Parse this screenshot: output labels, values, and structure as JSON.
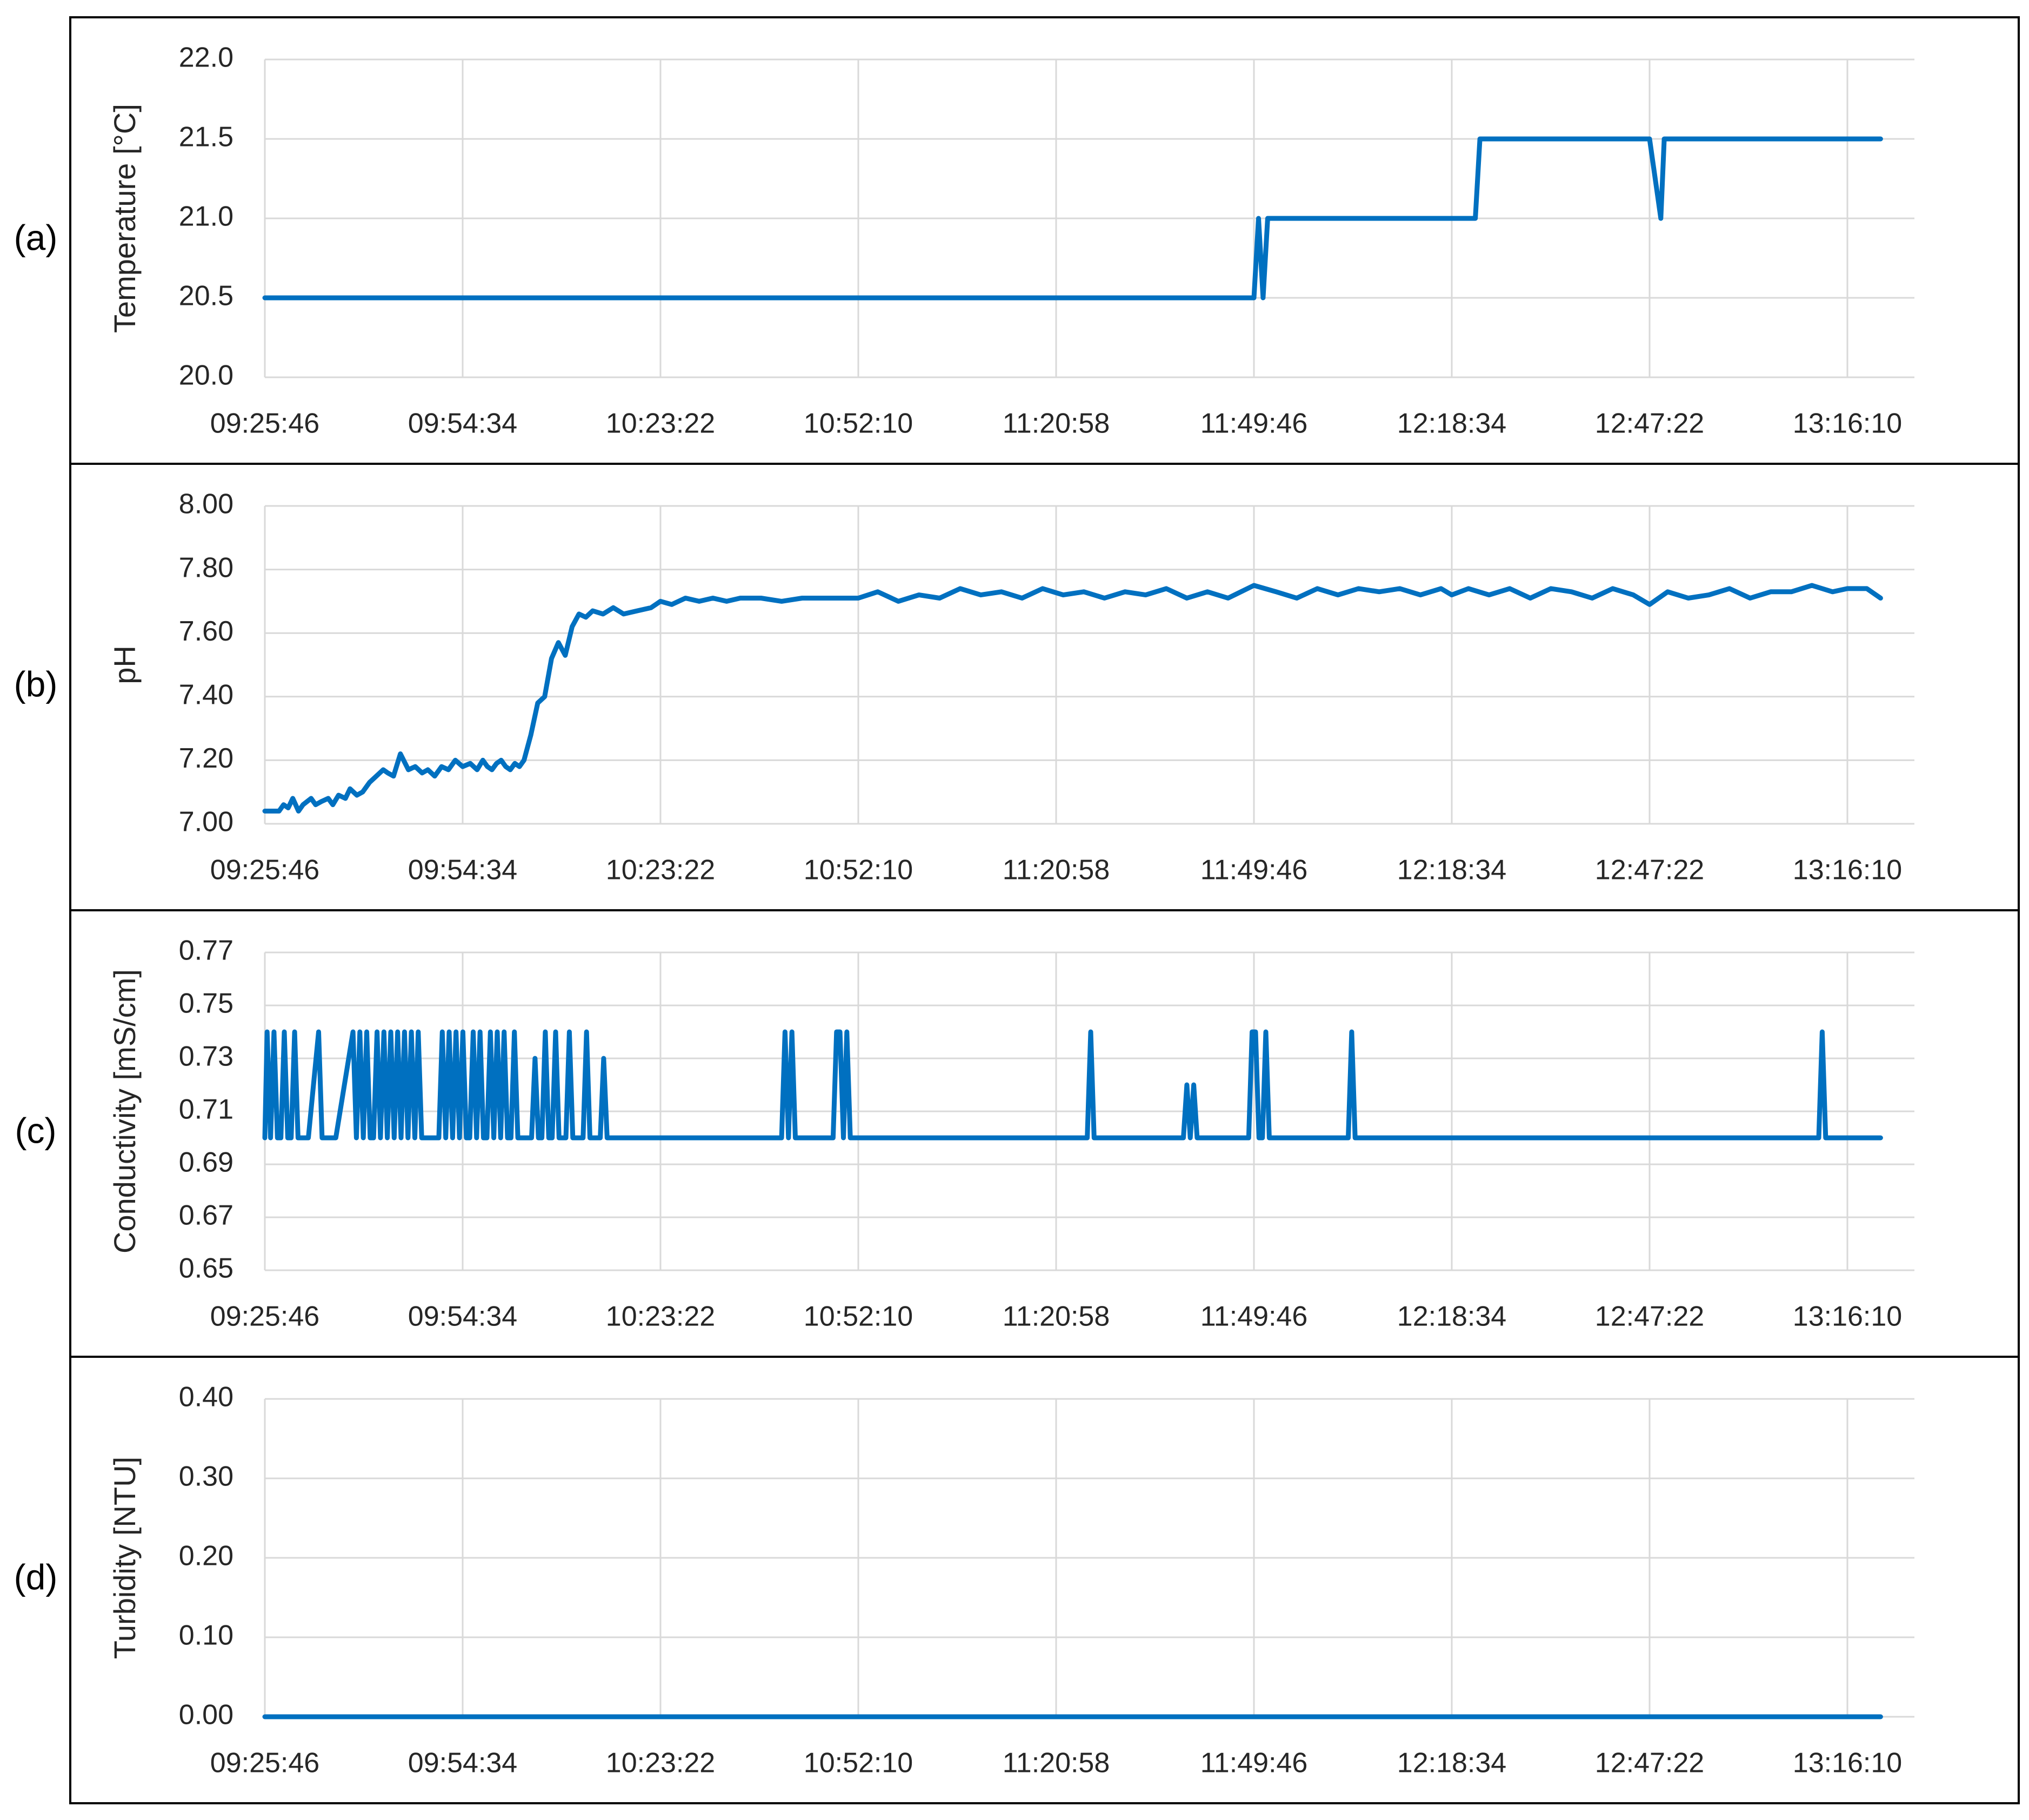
{
  "colors": {
    "series": "#0070C0",
    "grid": "#d9d9d9",
    "frame": "#000000",
    "text": "#262626"
  },
  "chart_data": [
    {
      "panel": "(a)",
      "type": "line",
      "ylabel": "Temperature [°C]",
      "ylim": [
        20.0,
        22.0
      ],
      "yticks": [
        "20.0",
        "20.5",
        "21.0",
        "21.5",
        "22.0"
      ],
      "xticks": [
        "09:25:46",
        "09:54:34",
        "10:23:22",
        "10:52:10",
        "11:20:58",
        "11:49:46",
        "12:18:34",
        "12:47:22",
        "13:16:10"
      ],
      "grid": true,
      "series": [
        {
          "x": [
            "09:25:46",
            "11:49:46",
            "11:50:26",
            "11:51:06",
            "11:51:46",
            "11:52:26",
            "12:22:00",
            "12:22:40",
            "12:47:22",
            "12:49:00",
            "12:49:30",
            "12:50:00",
            "13:21:00"
          ],
          "values": [
            20.5,
            20.5,
            21.0,
            20.5,
            21.0,
            21.0,
            21.0,
            21.5,
            21.5,
            21.0,
            21.5,
            21.5,
            21.5
          ]
        }
      ]
    },
    {
      "panel": "(b)",
      "type": "line",
      "ylabel": "pH",
      "ylim": [
        7.0,
        8.0
      ],
      "yticks": [
        "7.00",
        "7.20",
        "7.40",
        "7.60",
        "7.80",
        "8.00"
      ],
      "xticks": [
        "09:25:46",
        "09:54:34",
        "10:23:22",
        "10:52:10",
        "11:20:58",
        "11:49:46",
        "12:18:34",
        "12:47:22",
        "13:16:10"
      ],
      "grid": true,
      "series": [
        {
          "x": [
            "09:25:46",
            "09:27:50",
            "09:28:30",
            "09:29:10",
            "09:29:50",
            "09:30:40",
            "09:31:20",
            "09:32:30",
            "09:33:10",
            "09:34:00",
            "09:35:00",
            "09:35:40",
            "09:36:30",
            "09:37:30",
            "09:38:10",
            "09:39:10",
            "09:40:00",
            "09:41:00",
            "09:42:00",
            "09:43:00",
            "09:43:40",
            "09:44:30",
            "09:45:30",
            "09:46:40",
            "09:47:40",
            "09:48:40",
            "09:49:30",
            "09:50:30",
            "09:51:30",
            "09:52:30",
            "09:53:30",
            "09:54:34",
            "09:55:40",
            "09:56:40",
            "09:57:30",
            "09:58:10",
            "09:58:50",
            "09:59:30",
            "10:00:10",
            "10:00:50",
            "10:01:30",
            "10:02:10",
            "10:02:50",
            "10:03:30",
            "10:04:30",
            "10:05:30",
            "10:06:30",
            "10:07:30",
            "10:08:30",
            "10:09:30",
            "10:10:30",
            "10:11:30",
            "10:12:30",
            "10:13:30",
            "10:15:00",
            "10:16:30",
            "10:18:00",
            "10:20:00",
            "10:22:00",
            "10:23:22",
            "10:25:00",
            "10:27:00",
            "10:29:00",
            "10:31:00",
            "10:33:00",
            "10:35:00",
            "10:38:00",
            "10:41:00",
            "10:44:00",
            "10:47:00",
            "10:50:00",
            "10:52:10",
            "10:55:00",
            "10:58:00",
            "11:01:00",
            "11:04:00",
            "11:07:00",
            "11:10:00",
            "11:13:00",
            "11:16:00",
            "11:19:00",
            "11:22:00",
            "11:25:00",
            "11:28:00",
            "11:31:00",
            "11:34:00",
            "11:37:00",
            "11:40:00",
            "11:43:00",
            "11:46:00",
            "11:49:46",
            "11:53:00",
            "11:56:00",
            "11:59:00",
            "12:02:00",
            "12:05:00",
            "12:08:00",
            "12:11:00",
            "12:14:00",
            "12:17:00",
            "12:18:34",
            "12:21:00",
            "12:24:00",
            "12:27:00",
            "12:30:00",
            "12:33:00",
            "12:36:00",
            "12:39:00",
            "12:42:00",
            "12:45:00",
            "12:47:22",
            "12:50:00",
            "12:53:00",
            "12:56:00",
            "12:59:00",
            "13:02:00",
            "13:05:00",
            "13:08:00",
            "13:11:00",
            "13:14:00",
            "13:16:10",
            "13:19:00",
            "13:21:00"
          ],
          "values": [
            7.04,
            7.04,
            7.06,
            7.05,
            7.08,
            7.04,
            7.06,
            7.08,
            7.06,
            7.07,
            7.08,
            7.06,
            7.09,
            7.08,
            7.11,
            7.09,
            7.1,
            7.13,
            7.15,
            7.17,
            7.16,
            7.15,
            7.22,
            7.17,
            7.18,
            7.16,
            7.17,
            7.15,
            7.18,
            7.17,
            7.2,
            7.18,
            7.19,
            7.17,
            7.2,
            7.18,
            7.17,
            7.19,
            7.2,
            7.18,
            7.17,
            7.19,
            7.18,
            7.2,
            7.28,
            7.38,
            7.4,
            7.52,
            7.57,
            7.53,
            7.62,
            7.66,
            7.65,
            7.67,
            7.66,
            7.68,
            7.66,
            7.67,
            7.68,
            7.7,
            7.69,
            7.71,
            7.7,
            7.71,
            7.7,
            7.71,
            7.71,
            7.7,
            7.71,
            7.71,
            7.71,
            7.71,
            7.73,
            7.7,
            7.72,
            7.71,
            7.74,
            7.72,
            7.73,
            7.71,
            7.74,
            7.72,
            7.73,
            7.71,
            7.73,
            7.72,
            7.74,
            7.71,
            7.73,
            7.71,
            7.75,
            7.73,
            7.71,
            7.74,
            7.72,
            7.74,
            7.73,
            7.74,
            7.72,
            7.74,
            7.72,
            7.74,
            7.72,
            7.74,
            7.71,
            7.74,
            7.73,
            7.71,
            7.74,
            7.72,
            7.69,
            7.73,
            7.71,
            7.72,
            7.74,
            7.71,
            7.73,
            7.73,
            7.75,
            7.73,
            7.74,
            7.74,
            7.71
          ]
        }
      ]
    },
    {
      "panel": "(c)",
      "type": "line",
      "ylabel": "Conductivity [mS/cm]",
      "ylim": [
        0.65,
        0.77
      ],
      "yticks": [
        "0.65",
        "0.67",
        "0.69",
        "0.71",
        "0.73",
        "0.75",
        "0.77"
      ],
      "xticks": [
        "09:25:46",
        "09:54:34",
        "10:23:22",
        "10:52:10",
        "11:20:58",
        "11:49:46",
        "12:18:34",
        "12:47:22",
        "13:16:10"
      ],
      "grid": true,
      "series": [
        {
          "x": [
            "09:25:46",
            "09:26:06",
            "09:26:36",
            "09:27:06",
            "09:27:36",
            "09:28:06",
            "09:28:36",
            "09:29:06",
            "09:29:36",
            "09:30:06",
            "09:30:36",
            "09:31:06",
            "09:31:36",
            "09:32:06",
            "09:33:36",
            "09:34:06",
            "09:34:36",
            "09:35:06",
            "09:35:36",
            "09:36:06",
            "09:38:36",
            "09:39:06",
            "09:39:36",
            "09:40:06",
            "09:40:36",
            "09:41:06",
            "09:41:36",
            "09:42:06",
            "09:42:36",
            "09:43:06",
            "09:43:36",
            "09:44:06",
            "09:44:36",
            "09:45:06",
            "09:45:36",
            "09:46:06",
            "09:46:36",
            "09:47:06",
            "09:47:36",
            "09:48:06",
            "09:48:36",
            "09:49:06",
            "09:49:36",
            "09:50:06",
            "09:50:36",
            "09:51:06",
            "09:51:36",
            "09:52:06",
            "09:52:36",
            "09:53:06",
            "09:53:36",
            "09:54:06",
            "09:54:36",
            "09:55:06",
            "09:55:36",
            "09:56:06",
            "09:56:36",
            "09:57:06",
            "09:57:36",
            "09:58:06",
            "09:58:36",
            "09:59:06",
            "09:59:36",
            "10:00:06",
            "10:00:36",
            "10:01:06",
            "10:01:36",
            "10:02:06",
            "10:02:36",
            "10:03:06",
            "10:03:36",
            "10:04:06",
            "10:04:36",
            "10:05:06",
            "10:05:36",
            "10:06:06",
            "10:06:36",
            "10:07:06",
            "10:07:36",
            "10:08:06",
            "10:08:36",
            "10:09:06",
            "10:09:36",
            "10:10:06",
            "10:10:36",
            "10:11:06",
            "10:11:36",
            "10:12:06",
            "10:12:36",
            "10:13:06",
            "10:13:36",
            "10:14:06",
            "10:14:36",
            "10:15:06",
            "10:15:36",
            "10:16:06",
            "10:16:36",
            "10:17:06",
            "10:17:36",
            "10:18:06",
            "10:18:36",
            "10:19:06",
            "10:19:36",
            "10:20:06",
            "10:20:36",
            "10:21:06",
            "10:21:36",
            "10:22:06",
            "10:22:36",
            "10:23:06",
            "10:41:00",
            "10:41:30",
            "10:42:00",
            "10:42:30",
            "10:43:00",
            "10:43:30",
            "10:44:00",
            "10:48:30",
            "10:49:00",
            "10:49:30",
            "10:50:00",
            "10:50:30",
            "10:51:00",
            "10:51:30",
            "10:52:00",
            "11:25:30",
            "11:26:00",
            "11:26:30",
            "11:27:00",
            "11:39:30",
            "11:40:00",
            "11:40:30",
            "11:41:00",
            "11:41:30",
            "11:49:00",
            "11:49:30",
            "11:50:00",
            "11:50:30",
            "11:51:00",
            "11:51:30",
            "11:52:00",
            "11:52:30",
            "11:53:00",
            "11:53:30",
            "11:54:00",
            "12:03:30",
            "12:04:00",
            "12:04:30",
            "12:05:00",
            "12:05:30",
            "13:12:00",
            "13:12:30",
            "13:13:00",
            "13:13:30",
            "13:21:00"
          ],
          "values": [
            0.7,
            0.74,
            0.7,
            0.74,
            0.7,
            0.7,
            0.74,
            0.7,
            0.7,
            0.74,
            0.7,
            0.7,
            0.7,
            0.7,
            0.74,
            0.7,
            0.7,
            0.7,
            0.7,
            0.7,
            0.74,
            0.7,
            0.74,
            0.7,
            0.74,
            0.7,
            0.7,
            0.74,
            0.7,
            0.74,
            0.7,
            0.74,
            0.7,
            0.74,
            0.7,
            0.74,
            0.7,
            0.74,
            0.7,
            0.74,
            0.7,
            0.7,
            0.7,
            0.7,
            0.7,
            0.7,
            0.74,
            0.7,
            0.74,
            0.7,
            0.74,
            0.7,
            0.74,
            0.7,
            0.7,
            0.74,
            0.7,
            0.74,
            0.7,
            0.7,
            0.74,
            0.7,
            0.74,
            0.7,
            0.74,
            0.7,
            0.7,
            0.74,
            0.7,
            0.7,
            0.7,
            0.7,
            0.7,
            0.73,
            0.7,
            0.7,
            0.74,
            0.7,
            0.7,
            0.74,
            0.7,
            0.7,
            0.7,
            0.74,
            0.7,
            0.7,
            0.7,
            0.7,
            0.74,
            0.7,
            0.7,
            0.7,
            0.7,
            0.73,
            0.7,
            0.7,
            0.7,
            0.7,
            0.7,
            0.7,
            0.7,
            0.7,
            0.7,
            0.7,
            0.7,
            0.7,
            0.7,
            0.7,
            0.7,
            0.7,
            0.7,
            0.74,
            0.7,
            0.74,
            0.7,
            0.7,
            0.7,
            0.7,
            0.74,
            0.74,
            0.7,
            0.74,
            0.7,
            0.7,
            0.7,
            0.7,
            0.74,
            0.7,
            0.7,
            0.7,
            0.72,
            0.7,
            0.72,
            0.7,
            0.7,
            0.74,
            0.74,
            0.7,
            0.7,
            0.74,
            0.7,
            0.7,
            0.7,
            0.7,
            0.7,
            0.7,
            0.74,
            0.7,
            0.7,
            0.7,
            0.7,
            0.74,
            0.7,
            0.7,
            0.7
          ]
        }
      ]
    },
    {
      "panel": "(d)",
      "type": "line",
      "ylabel": "Turbidity [NTU]",
      "ylim": [
        0.0,
        0.4
      ],
      "yticks": [
        "0.00",
        "0.10",
        "0.20",
        "0.30",
        "0.40"
      ],
      "xticks": [
        "09:25:46",
        "09:54:34",
        "10:23:22",
        "10:52:10",
        "11:20:58",
        "11:49:46",
        "12:18:34",
        "12:47:22",
        "13:16:10"
      ],
      "grid": true,
      "series": [
        {
          "x": [
            "09:25:46",
            "13:21:00"
          ],
          "values": [
            0.0,
            0.0
          ]
        }
      ]
    }
  ]
}
